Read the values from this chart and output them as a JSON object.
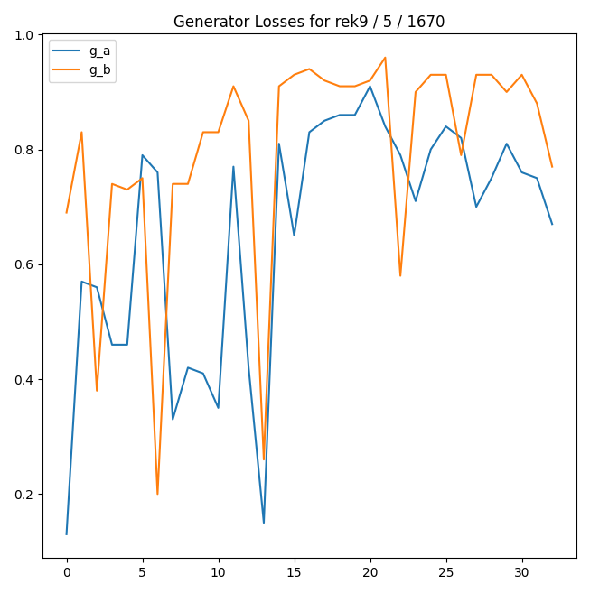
{
  "title": "Generator Losses for rek9 / 5 / 1670",
  "g_a": [
    0.13,
    0.57,
    0.56,
    0.46,
    0.46,
    0.79,
    0.76,
    0.33,
    0.42,
    0.41,
    0.35,
    0.77,
    0.42,
    0.15,
    0.81,
    0.65,
    0.83,
    0.85,
    0.86,
    0.86,
    0.91,
    0.84,
    0.79,
    0.71,
    0.8,
    0.84,
    0.82,
    0.7,
    0.75,
    0.81,
    0.76,
    0.75,
    0.67
  ],
  "g_b": [
    0.69,
    0.83,
    0.38,
    0.74,
    0.73,
    0.75,
    0.2,
    0.74,
    0.74,
    0.83,
    0.83,
    0.91,
    0.85,
    0.26,
    0.91,
    0.93,
    0.94,
    0.92,
    0.91,
    0.91,
    0.92,
    0.96,
    0.58,
    0.9,
    0.93,
    0.93,
    0.79,
    0.93,
    0.93,
    0.9,
    0.93,
    0.88,
    0.77
  ],
  "color_a": "#1f77b4",
  "color_b": "#ff7f0e",
  "legend_a": "g_a",
  "legend_b": "g_b",
  "figsize": [
    6.53,
    6.57
  ],
  "dpi": 100
}
